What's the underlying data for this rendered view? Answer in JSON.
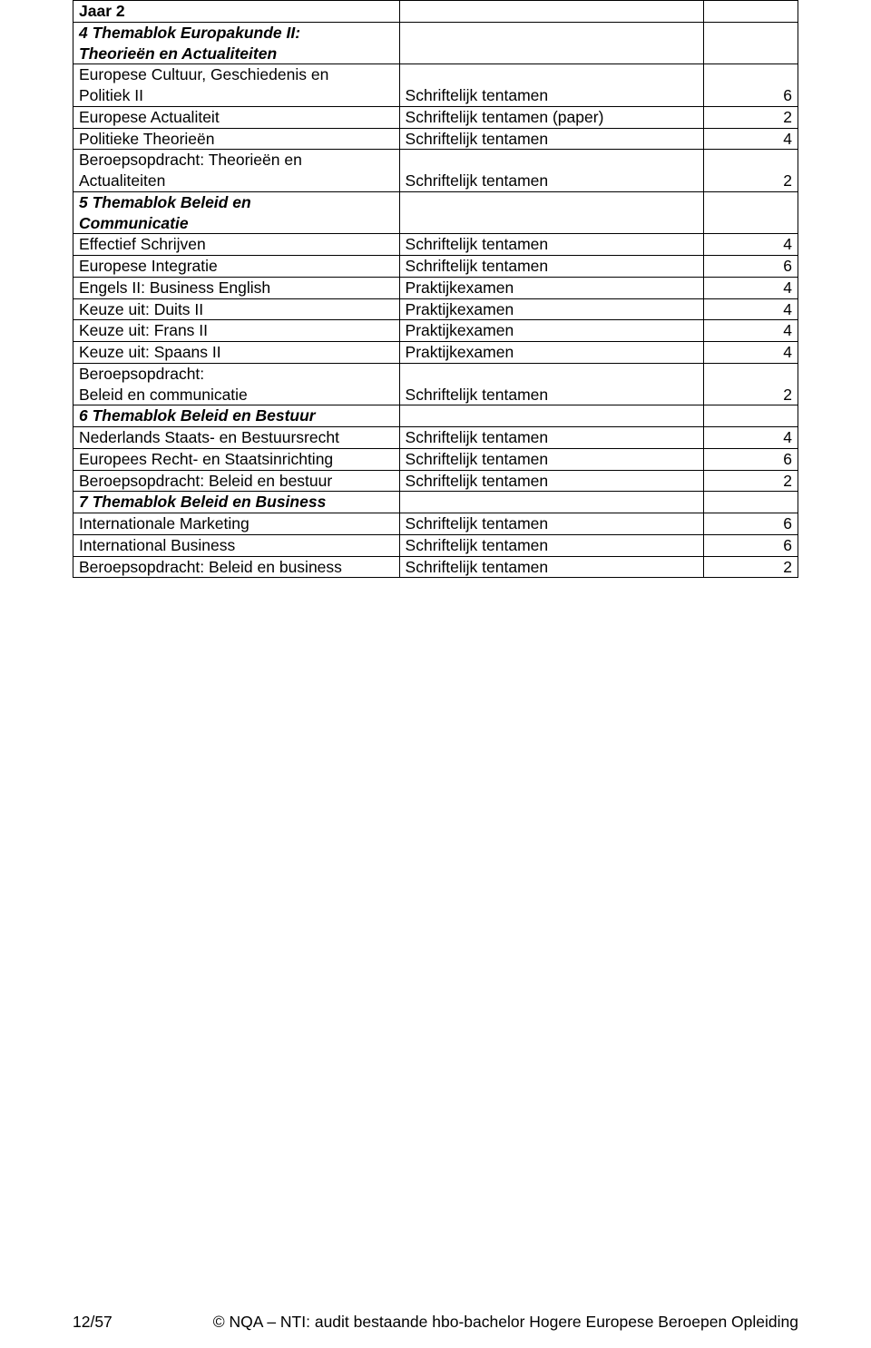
{
  "rows": [
    {
      "c1": "Jaar 2",
      "c1_class": "bold",
      "c2": "",
      "c3": ""
    },
    {
      "c1a": "4 Themablok Europakunde II:",
      "c1a_class": "bolditalic",
      "c1b": "Theorieën en Actualiteiten",
      "c1b_class": "bolditalic",
      "c2": "",
      "c3": ""
    },
    {
      "c1a": "Europese Cultuur, Geschiedenis en",
      "c1b": "Politiek II",
      "c2": "Schriftelijk tentamen",
      "c3": "6"
    },
    {
      "c1": "Europese Actualiteit",
      "c2": "Schriftelijk tentamen (paper)",
      "c3": "2"
    },
    {
      "c1": "Politieke Theorieën",
      "c2": "Schriftelijk tentamen",
      "c3": "4"
    },
    {
      "c1a": "Beroepsopdracht: Theorieën en",
      "c1b": "Actualiteiten",
      "c2": "Schriftelijk tentamen",
      "c3": "2"
    },
    {
      "c1a": "5 Themablok Beleid en",
      "c1a_class": "bolditalic",
      "c1b": "Communicatie",
      "c1b_class": "bolditalic",
      "c2": "",
      "c3": ""
    },
    {
      "c1": "Effectief Schrijven",
      "c2": "Schriftelijk tentamen",
      "c3": "4"
    },
    {
      "c1": "Europese Integratie",
      "c2": "Schriftelijk tentamen",
      "c3": "6"
    },
    {
      "c1": "Engels II: Business English",
      "c2": "Praktijkexamen",
      "c3": "4"
    },
    {
      "c1": "Keuze uit: Duits II",
      "c2": "Praktijkexamen",
      "c3": "4"
    },
    {
      "c1": "Keuze uit: Frans II",
      "c2": "Praktijkexamen",
      "c3": "4"
    },
    {
      "c1": "Keuze uit: Spaans II",
      "c2": "Praktijkexamen",
      "c3": "4"
    },
    {
      "c1a": "Beroepsopdracht:",
      "c1b": "Beleid en communicatie",
      "c2": "Schriftelijk tentamen",
      "c3": "2"
    },
    {
      "c1": "6 Themablok Beleid en Bestuur",
      "c1_class": "bolditalic",
      "c2": "",
      "c3": ""
    },
    {
      "c1": "Nederlands Staats- en Bestuursrecht",
      "c2": "Schriftelijk tentamen",
      "c3": "4"
    },
    {
      "c1": "Europees Recht- en Staatsinrichting",
      "c2": "Schriftelijk tentamen",
      "c3": "6"
    },
    {
      "c1": "Beroepsopdracht: Beleid en bestuur",
      "c2": "Schriftelijk tentamen",
      "c3": "2"
    },
    {
      "c1": "7 Themablok Beleid en Business",
      "c1_class": "bolditalic",
      "c2": "",
      "c3": ""
    },
    {
      "c1": "Internationale Marketing",
      "c2": "Schriftelijk tentamen",
      "c3": "6"
    },
    {
      "c1": "International Business",
      "c2": "Schriftelijk tentamen",
      "c3": "6"
    },
    {
      "c1": "Beroepsopdracht: Beleid en business",
      "c2": "Schriftelijk tentamen",
      "c3": "2"
    }
  ],
  "footer": {
    "left": "12/57",
    "right": "© NQA – NTI: audit bestaande hbo-bachelor Hogere Europese Beroepen Opleiding"
  },
  "colors": {
    "text": "#000000",
    "background": "#ffffff",
    "border": "#000000"
  }
}
